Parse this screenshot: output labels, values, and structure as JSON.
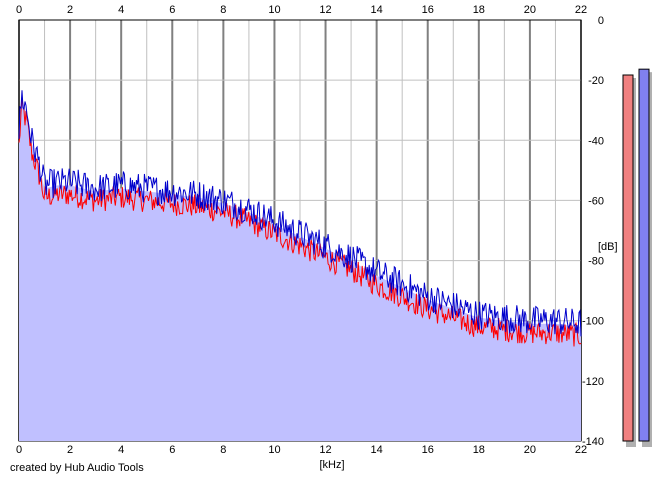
{
  "chart_data": {
    "type": "area",
    "xlabel": "[kHz]",
    "ylabel": "[dB]",
    "xlim": [
      0,
      22
    ],
    "ylim": [
      -140,
      0
    ],
    "x_ticks": [
      "0",
      "2",
      "4",
      "6",
      "8",
      "10",
      "12",
      "14",
      "16",
      "18",
      "20",
      "22"
    ],
    "y_ticks": [
      "0",
      "-20",
      "-40",
      "-60",
      "-80",
      "-100",
      "-120",
      "-140"
    ],
    "grid": true,
    "colors": {
      "fill": "#c0c0ff",
      "series_red": "#ff0000",
      "series_blue": "#0000cc",
      "grid_minor": "#c0c0c0",
      "grid_major": "#808080",
      "meter_left": "#f08080",
      "meter_right": "#8080f0"
    },
    "envelope": {
      "x": [
        0,
        0.1,
        0.3,
        0.5,
        0.8,
        1.0,
        1.5,
        2,
        3,
        4,
        5,
        6,
        7,
        8,
        9,
        10,
        11,
        12,
        13,
        14,
        15,
        16,
        17,
        18,
        19,
        20,
        21,
        22
      ],
      "y": [
        -40,
        -27,
        -32,
        -42,
        -50,
        -57,
        -56,
        -56,
        -58,
        -57,
        -58,
        -59,
        -60,
        -62,
        -65,
        -69,
        -73,
        -77,
        -81,
        -86,
        -90,
        -94,
        -97,
        -100,
        -101,
        -102,
        -102,
        -103
      ]
    },
    "series": [
      {
        "color": "#ff0000",
        "noise": 4,
        "offset": -2
      },
      {
        "color": "#0000cc",
        "noise": 5,
        "offset": 2
      }
    ],
    "level_meters": [
      {
        "channel": "left",
        "level_db": -12,
        "color": "#f08080"
      },
      {
        "channel": "right",
        "level_db": -10,
        "color": "#8080f0"
      }
    ]
  },
  "credit": "created by Hub Audio Tools"
}
